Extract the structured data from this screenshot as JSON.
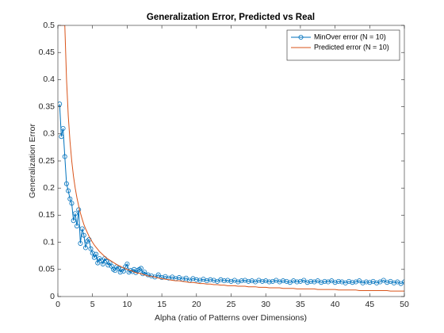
{
  "chart_data": {
    "type": "line",
    "title": "Generalization Error, Predicted vs Real",
    "x_label": "Alpha (ratio of Patterns over Dimensions)",
    "y_label": "Generalization Error",
    "xlim": [
      0,
      50
    ],
    "ylim": [
      0,
      0.5
    ],
    "xticks": [
      0,
      5,
      10,
      15,
      20,
      25,
      30,
      35,
      40,
      45,
      50
    ],
    "yticks": [
      0,
      0.05,
      0.1,
      0.15,
      0.2,
      0.25,
      0.3,
      0.35,
      0.4,
      0.45,
      0.5
    ],
    "legend": "top-right",
    "x": [
      0.25,
      0.5,
      0.75,
      1,
      1.25,
      1.5,
      1.75,
      2,
      2.25,
      2.5,
      2.75,
      3,
      3.25,
      3.5,
      3.75,
      4,
      4.25,
      4.5,
      4.75,
      5,
      5.25,
      5.5,
      5.75,
      6,
      6.25,
      6.5,
      6.75,
      7,
      7.25,
      7.5,
      7.75,
      8,
      8.25,
      8.5,
      8.75,
      9,
      9.25,
      9.5,
      9.75,
      10,
      10.25,
      10.5,
      10.75,
      11,
      11.25,
      11.5,
      11.75,
      12,
      12.25,
      12.5,
      13,
      13.5,
      14,
      14.5,
      15,
      15.5,
      16,
      16.5,
      17,
      17.5,
      18,
      18.5,
      19,
      19.5,
      20,
      20.5,
      21,
      21.5,
      22,
      22.5,
      23,
      23.5,
      24,
      24.5,
      25,
      25.5,
      26,
      26.5,
      27,
      27.5,
      28,
      28.5,
      29,
      29.5,
      30,
      30.5,
      31,
      31.5,
      32,
      32.5,
      33,
      33.5,
      34,
      34.5,
      35,
      35.5,
      36,
      36.5,
      37,
      37.5,
      38,
      38.5,
      39,
      39.5,
      40,
      40.5,
      41,
      41.5,
      42,
      42.5,
      43,
      43.5,
      44,
      44.5,
      45,
      45.5,
      46,
      46.5,
      47,
      47.5,
      48,
      48.5,
      49,
      49.5,
      50
    ],
    "series": [
      {
        "name": "MinOver error (N = 10)",
        "color": "#0072bd",
        "marker": "circle",
        "values": [
          0.355,
          0.295,
          0.31,
          0.258,
          0.208,
          0.195,
          0.18,
          0.172,
          0.14,
          0.153,
          0.13,
          0.16,
          0.098,
          0.125,
          0.113,
          0.09,
          0.102,
          0.105,
          0.088,
          0.08,
          0.072,
          0.078,
          0.062,
          0.07,
          0.066,
          0.06,
          0.07,
          0.065,
          0.058,
          0.062,
          0.056,
          0.05,
          0.048,
          0.055,
          0.052,
          0.045,
          0.05,
          0.047,
          0.055,
          0.06,
          0.045,
          0.048,
          0.046,
          0.05,
          0.044,
          0.048,
          0.05,
          0.052,
          0.042,
          0.045,
          0.04,
          0.038,
          0.036,
          0.04,
          0.035,
          0.037,
          0.034,
          0.036,
          0.033,
          0.035,
          0.032,
          0.034,
          0.03,
          0.033,
          0.031,
          0.03,
          0.032,
          0.029,
          0.031,
          0.03,
          0.028,
          0.031,
          0.029,
          0.03,
          0.028,
          0.03,
          0.027,
          0.029,
          0.03,
          0.028,
          0.029,
          0.027,
          0.03,
          0.028,
          0.029,
          0.027,
          0.028,
          0.03,
          0.027,
          0.029,
          0.028,
          0.026,
          0.029,
          0.027,
          0.028,
          0.03,
          0.026,
          0.028,
          0.027,
          0.029,
          0.026,
          0.028,
          0.027,
          0.029,
          0.026,
          0.028,
          0.027,
          0.025,
          0.028,
          0.026,
          0.027,
          0.029,
          0.025,
          0.027,
          0.026,
          0.028,
          0.025,
          0.027,
          0.03,
          0.026,
          0.028,
          0.025,
          0.027,
          0.024,
          0.027
        ]
      },
      {
        "name": "Predicted error (N = 10)",
        "color": "#d95319",
        "values": [
          0.5,
          0.5,
          0.5,
          0.5,
          0.4,
          0.333,
          0.286,
          0.25,
          0.222,
          0.2,
          0.182,
          0.167,
          0.154,
          0.143,
          0.133,
          0.125,
          0.118,
          0.111,
          0.105,
          0.1,
          0.095,
          0.091,
          0.087,
          0.083,
          0.08,
          0.077,
          0.074,
          0.071,
          0.069,
          0.067,
          0.065,
          0.063,
          0.061,
          0.059,
          0.057,
          0.056,
          0.054,
          0.053,
          0.051,
          0.05,
          0.049,
          0.048,
          0.047,
          0.045,
          0.044,
          0.043,
          0.043,
          0.042,
          0.041,
          0.04,
          0.038,
          0.037,
          0.036,
          0.034,
          0.033,
          0.032,
          0.031,
          0.03,
          0.029,
          0.029,
          0.028,
          0.027,
          0.026,
          0.026,
          0.025,
          0.024,
          0.024,
          0.023,
          0.023,
          0.022,
          0.022,
          0.021,
          0.021,
          0.02,
          0.02,
          0.02,
          0.019,
          0.019,
          0.019,
          0.018,
          0.018,
          0.018,
          0.017,
          0.017,
          0.017,
          0.016,
          0.016,
          0.016,
          0.016,
          0.015,
          0.015,
          0.015,
          0.015,
          0.014,
          0.014,
          0.014,
          0.014,
          0.014,
          0.014,
          0.013,
          0.013,
          0.013,
          0.013,
          0.013,
          0.013,
          0.012,
          0.012,
          0.012,
          0.012,
          0.012,
          0.012,
          0.011,
          0.011,
          0.011,
          0.011,
          0.011,
          0.011,
          0.011,
          0.011,
          0.011,
          0.01,
          0.01,
          0.01,
          0.01,
          0.01
        ]
      }
    ]
  }
}
